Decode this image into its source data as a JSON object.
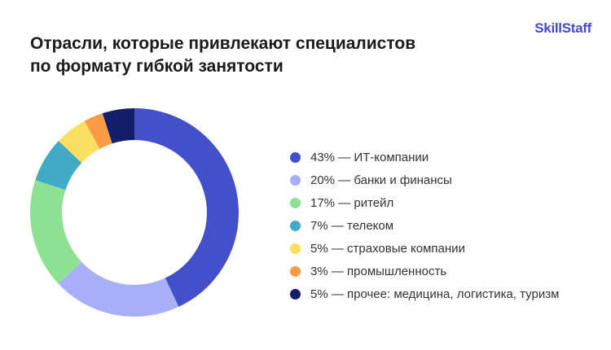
{
  "page": {
    "background": "#ffffff"
  },
  "header": {
    "logo": "SkillStaff",
    "logo_color": "#4547d6",
    "title_line1": "Отрасли, которые привлекают специалистов",
    "title_line2": "по формату гибкой занятости",
    "title_color": "#1b1b1b"
  },
  "chart_data": {
    "type": "pie",
    "donut": true,
    "title": "Отрасли, которые привлекают специалистов по формату гибкой занятости",
    "start_angle_deg": 0,
    "direction": "clockwise",
    "legend_position": "right",
    "inner_radius_ratio": 0.695,
    "segments": [
      {
        "label": "ИТ-компании",
        "value": 43,
        "display": "43% — ИТ-компании",
        "color": "#4450c9"
      },
      {
        "label": "банки и финансы",
        "value": 20,
        "display": "20% — банки и финансы",
        "color": "#a9aff6"
      },
      {
        "label": "ритейл",
        "value": 17,
        "display": "17% — ритейл",
        "color": "#8ee193"
      },
      {
        "label": "телеком",
        "value": 7,
        "display": "7% — телеком",
        "color": "#41abc7"
      },
      {
        "label": "страховые компании",
        "value": 5,
        "display": "5% — страховые компании",
        "color": "#fbdf60"
      },
      {
        "label": "промышленность",
        "value": 3,
        "display": "3% — промышленность",
        "color": "#fb9b43"
      },
      {
        "label": "прочее: медицина, логистика, туризм",
        "value": 5,
        "display": "5% — прочее: медицина, логистика, туризм",
        "color": "#131f6b"
      }
    ]
  }
}
